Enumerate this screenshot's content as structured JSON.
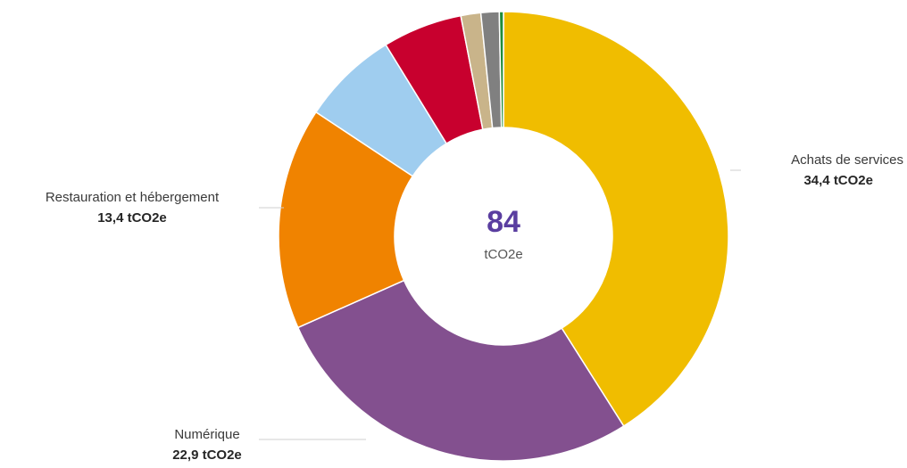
{
  "chart_data": {
    "type": "pie",
    "variant": "donut",
    "total": "84",
    "total_unit": "tCO2e",
    "unit": "tCO2e",
    "slices": [
      {
        "name": "Achats de services",
        "value": 34.4,
        "value_label": "34,4 tCO2e",
        "color": "#f0bd00",
        "labeled": true
      },
      {
        "name": "Numérique",
        "value": 22.9,
        "value_label": "22,9 tCO2e",
        "color": "#83508f",
        "labeled": true
      },
      {
        "name": "Restauration et hébergement",
        "value": 13.4,
        "value_label": "13,4 tCO2e",
        "color": "#f08300",
        "labeled": true
      },
      {
        "name": "",
        "value": 5.8,
        "color": "#9fcdef",
        "labeled": false
      },
      {
        "name": "",
        "value": 4.8,
        "color": "#c8002e",
        "labeled": false
      },
      {
        "name": "",
        "value": 1.2,
        "color": "#c9b48a",
        "labeled": false
      },
      {
        "name": "",
        "value": 1.1,
        "color": "#808080",
        "labeled": false
      },
      {
        "name": "",
        "value": 0.25,
        "color": "#1f8c3a",
        "labeled": false
      }
    ]
  }
}
